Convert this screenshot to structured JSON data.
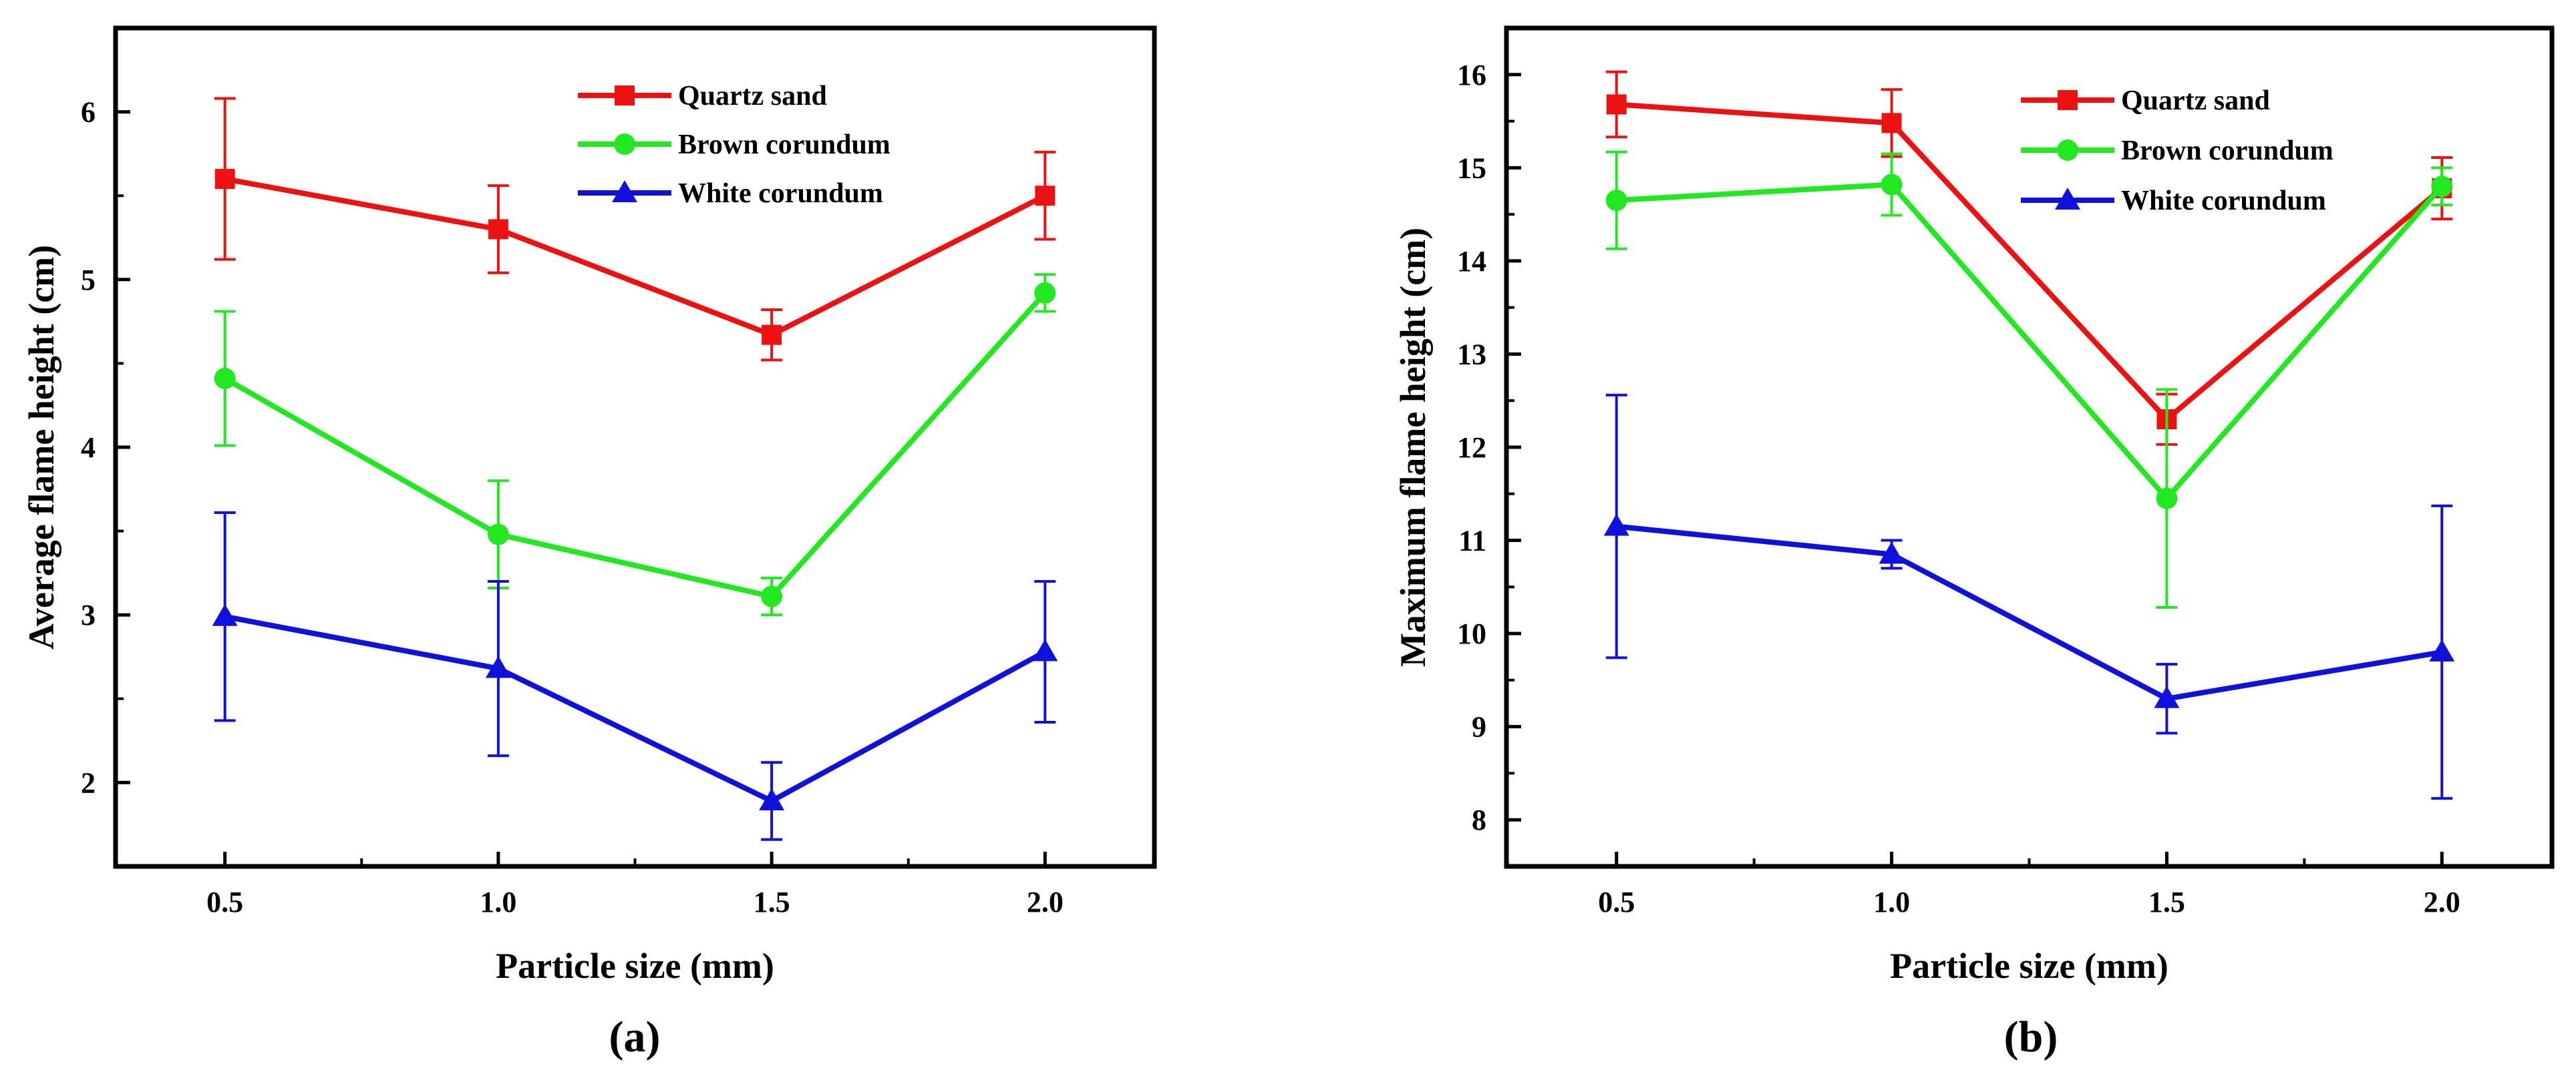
{
  "chart_data": [
    {
      "panel_label": "(a)",
      "type": "line",
      "xlabel": "Particle size (mm)",
      "ylabel": "Average flame height (cm)",
      "xlim": [
        0.3,
        2.2
      ],
      "ylim": [
        1.5,
        6.5
      ],
      "x_ticks": [
        "0.5",
        "1.0",
        "1.5",
        "2.0"
      ],
      "y_ticks": [
        "2",
        "3",
        "4",
        "5",
        "6"
      ],
      "legend_position": "top-right",
      "x": [
        0.5,
        1.0,
        1.5,
        2.0
      ],
      "series": [
        {
          "name": "Quartz sand",
          "color": "#ee1111",
          "marker": "square",
          "values": [
            5.6,
            5.3,
            4.67,
            5.5
          ],
          "err": [
            0.48,
            0.26,
            0.15,
            0.26
          ]
        },
        {
          "name": "Brown corundum",
          "color": "#22e822",
          "marker": "circle",
          "values": [
            4.41,
            3.48,
            3.11,
            4.92
          ],
          "err": [
            0.4,
            0.32,
            0.11,
            0.11
          ]
        },
        {
          "name": "White corundum",
          "color": "#1111dd",
          "marker": "triangle",
          "values": [
            2.99,
            2.68,
            1.89,
            2.78
          ],
          "err": [
            0.62,
            0.52,
            0.23,
            0.42
          ]
        }
      ]
    },
    {
      "panel_label": "(b)",
      "type": "line",
      "xlabel": "Particle size (mm)",
      "ylabel": "Maximum flame height (cm)",
      "xlim": [
        0.3,
        2.2
      ],
      "ylim": [
        7.5,
        16.5
      ],
      "x_ticks": [
        "0.5",
        "1.0",
        "1.5",
        "2.0"
      ],
      "y_ticks": [
        "8",
        "9",
        "10",
        "11",
        "12",
        "13",
        "14",
        "15",
        "16"
      ],
      "legend_position": "top-right",
      "x": [
        0.5,
        1.0,
        1.5,
        2.0
      ],
      "series": [
        {
          "name": "Quartz sand",
          "color": "#ee1111",
          "marker": "square",
          "values": [
            15.68,
            15.48,
            12.3,
            14.78
          ],
          "err": [
            0.35,
            0.36,
            0.27,
            0.33
          ]
        },
        {
          "name": "Brown corundum",
          "color": "#22e822",
          "marker": "circle",
          "values": [
            14.65,
            14.82,
            11.45,
            14.8
          ],
          "err": [
            0.52,
            0.33,
            1.17,
            0.2
          ]
        },
        {
          "name": "White corundum",
          "color": "#1111dd",
          "marker": "triangle",
          "values": [
            11.15,
            10.85,
            9.3,
            9.8
          ],
          "err": [
            1.41,
            0.15,
            0.37,
            1.57
          ]
        }
      ]
    }
  ]
}
